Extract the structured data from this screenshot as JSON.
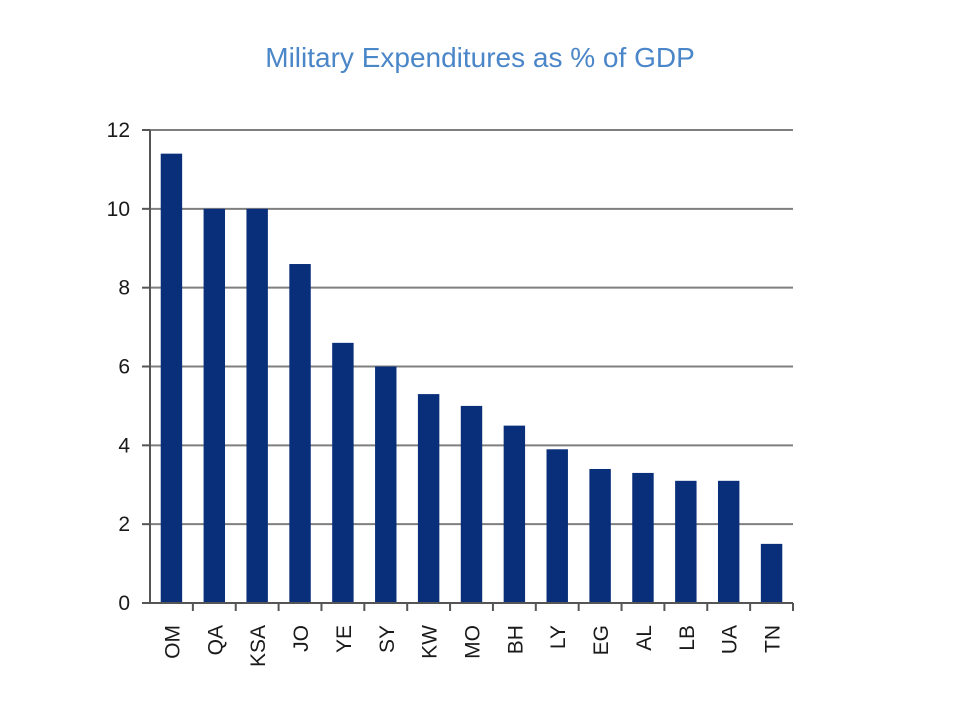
{
  "page": {
    "title": "Military Expenditures as % of GDP"
  },
  "chart_data": {
    "type": "bar",
    "title": "Military Expenditures as % of GDP",
    "xlabel": "",
    "ylabel": "",
    "categories": [
      "OM",
      "QA",
      "KSA",
      "JO",
      "YE",
      "SY",
      "KW",
      "MO",
      "BH",
      "LY",
      "EG",
      "AL",
      "LB",
      "UA",
      "TN"
    ],
    "values": [
      11.4,
      10.0,
      10.0,
      8.6,
      6.6,
      6.0,
      5.3,
      5.0,
      4.5,
      3.9,
      3.4,
      3.3,
      3.1,
      3.1,
      1.5
    ],
    "ylim": [
      0,
      12
    ],
    "yticks": [
      0,
      2,
      4,
      6,
      8,
      10,
      12
    ],
    "grid": true,
    "legend": "none",
    "colors": {
      "bar": "#0a2f7a",
      "grid": "#7f7f7f",
      "axis": "#555555",
      "title": "#4a86c8"
    }
  }
}
